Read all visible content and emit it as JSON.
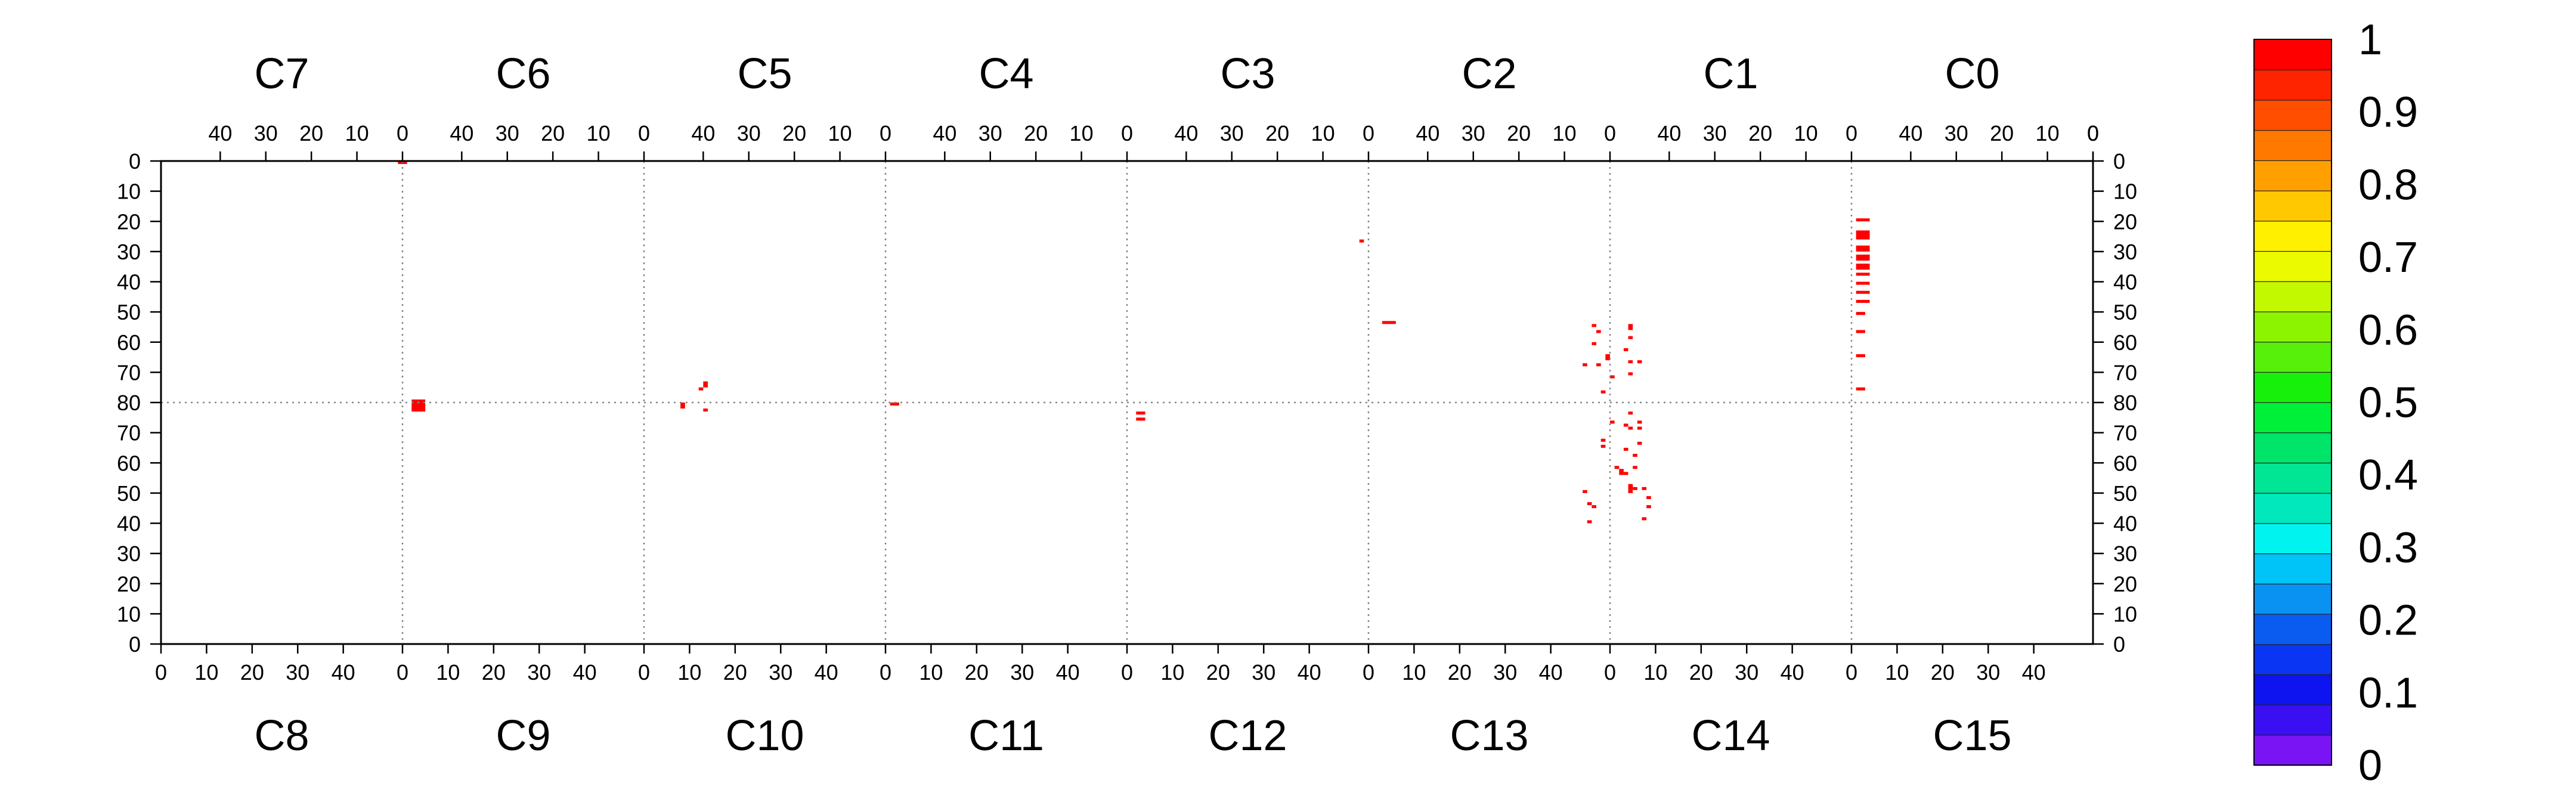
{
  "chart_data": {
    "type": "heatmap",
    "title": "",
    "chips_top": [
      "C7",
      "C6",
      "C5",
      "C4",
      "C3",
      "C2",
      "C1",
      "C0"
    ],
    "chips_bottom": [
      "C8",
      "C9",
      "C10",
      "C11",
      "C12",
      "C13",
      "C14",
      "C15"
    ],
    "top_x_tick_labels": [
      "40",
      "30",
      "20",
      "10",
      "0"
    ],
    "bottom_x_tick_labels": [
      "0",
      "10",
      "20",
      "30",
      "40"
    ],
    "y_tick_labels": [
      "0",
      "10",
      "20",
      "30",
      "40",
      "50",
      "60",
      "70",
      "80",
      "70",
      "60",
      "50",
      "40",
      "30",
      "20",
      "10",
      "0"
    ],
    "x_range_per_chip": [
      0,
      53
    ],
    "y_range": [
      0,
      160
    ],
    "grid": false,
    "colorbar": {
      "range": [
        0,
        1
      ],
      "tick_labels": [
        "0",
        "0.1",
        "0.2",
        "0.3",
        "0.4",
        "0.5",
        "0.6",
        "0.7",
        "0.8",
        "0.9",
        "1"
      ],
      "colors": [
        "#7a14f5",
        "#3a10f3",
        "#0d14f0",
        "#0a35f2",
        "#0a5cf0",
        "#0a92f2",
        "#00c3f8",
        "#00f3ee",
        "#00e8bc",
        "#00e695",
        "#00e46a",
        "#00f03a",
        "#16f00a",
        "#56f00a",
        "#8cf400",
        "#c2f800",
        "#ecfa00",
        "#fff000",
        "#ffc800",
        "#ffa000",
        "#ff7800",
        "#ff4e00",
        "#ff2400",
        "#ff0000"
      ]
    },
    "hit_color": "#ff0000",
    "hits": [
      {
        "col": 52,
        "row": 0,
        "w": 2,
        "h": 1
      },
      {
        "col": 55,
        "row": 79,
        "w": 3,
        "h": 4
      },
      {
        "col": 114,
        "row": 80,
        "w": 1,
        "h": 2
      },
      {
        "col": 118,
        "row": 75,
        "w": 1,
        "h": 1
      },
      {
        "col": 119,
        "row": 73,
        "w": 1,
        "h": 2
      },
      {
        "col": 119,
        "row": 82,
        "w": 1,
        "h": 1
      },
      {
        "col": 160,
        "row": 80,
        "w": 2,
        "h": 1
      },
      {
        "col": 214,
        "row": 83,
        "w": 2,
        "h": 1
      },
      {
        "col": 214,
        "row": 85,
        "w": 2,
        "h": 1
      },
      {
        "col": 263,
        "row": 26,
        "w": 1,
        "h": 1
      },
      {
        "col": 268,
        "row": 53,
        "w": 3,
        "h": 1
      },
      {
        "col": 314,
        "row": 54,
        "w": 1,
        "h": 1
      },
      {
        "col": 315,
        "row": 56,
        "w": 1,
        "h": 1
      },
      {
        "col": 314,
        "row": 60,
        "w": 1,
        "h": 1
      },
      {
        "col": 317,
        "row": 64,
        "w": 1,
        "h": 2
      },
      {
        "col": 312,
        "row": 67,
        "w": 1,
        "h": 1
      },
      {
        "col": 315,
        "row": 67,
        "w": 1,
        "h": 1
      },
      {
        "col": 318,
        "row": 71,
        "w": 1,
        "h": 1
      },
      {
        "col": 316,
        "row": 76,
        "w": 1,
        "h": 1
      },
      {
        "col": 322,
        "row": 54,
        "w": 1,
        "h": 2
      },
      {
        "col": 322,
        "row": 58,
        "w": 1,
        "h": 1
      },
      {
        "col": 321,
        "row": 62,
        "w": 1,
        "h": 1
      },
      {
        "col": 322,
        "row": 66,
        "w": 1,
        "h": 1
      },
      {
        "col": 324,
        "row": 66,
        "w": 1,
        "h": 1
      },
      {
        "col": 322,
        "row": 70,
        "w": 1,
        "h": 1
      },
      {
        "col": 322,
        "row": 83,
        "w": 1,
        "h": 1
      },
      {
        "col": 318,
        "row": 86,
        "w": 1,
        "h": 1
      },
      {
        "col": 316,
        "row": 92,
        "w": 1,
        "h": 1
      },
      {
        "col": 316,
        "row": 94,
        "w": 1,
        "h": 1
      },
      {
        "col": 321,
        "row": 87,
        "w": 1,
        "h": 1
      },
      {
        "col": 322,
        "row": 88,
        "w": 1,
        "h": 1
      },
      {
        "col": 324,
        "row": 86,
        "w": 1,
        "h": 1
      },
      {
        "col": 324,
        "row": 88,
        "w": 1,
        "h": 1
      },
      {
        "col": 321,
        "row": 95,
        "w": 1,
        "h": 1
      },
      {
        "col": 323,
        "row": 97,
        "w": 1,
        "h": 1
      },
      {
        "col": 324,
        "row": 93,
        "w": 1,
        "h": 1
      },
      {
        "col": 319,
        "row": 101,
        "w": 1,
        "h": 1
      },
      {
        "col": 320,
        "row": 102,
        "w": 1,
        "h": 2
      },
      {
        "col": 321,
        "row": 103,
        "w": 1,
        "h": 1
      },
      {
        "col": 323,
        "row": 101,
        "w": 1,
        "h": 1
      },
      {
        "col": 322,
        "row": 107,
        "w": 1,
        "h": 2
      },
      {
        "col": 322,
        "row": 109,
        "w": 1,
        "h": 1
      },
      {
        "col": 323,
        "row": 108,
        "w": 1,
        "h": 1
      },
      {
        "col": 325,
        "row": 108,
        "w": 1,
        "h": 1
      },
      {
        "col": 326,
        "row": 111,
        "w": 1,
        "h": 1
      },
      {
        "col": 326,
        "row": 114,
        "w": 1,
        "h": 1
      },
      {
        "col": 325,
        "row": 118,
        "w": 1,
        "h": 1
      },
      {
        "col": 312,
        "row": 109,
        "w": 1,
        "h": 1
      },
      {
        "col": 313,
        "row": 113,
        "w": 1,
        "h": 1
      },
      {
        "col": 314,
        "row": 114,
        "w": 1,
        "h": 1
      },
      {
        "col": 313,
        "row": 119,
        "w": 1,
        "h": 1
      },
      {
        "col": 372,
        "row": 19,
        "w": 3,
        "h": 1
      },
      {
        "col": 372,
        "row": 23,
        "w": 3,
        "h": 3
      },
      {
        "col": 372,
        "row": 28,
        "w": 3,
        "h": 2
      },
      {
        "col": 372,
        "row": 31,
        "w": 3,
        "h": 2
      },
      {
        "col": 372,
        "row": 34,
        "w": 3,
        "h": 2
      },
      {
        "col": 372,
        "row": 37,
        "w": 3,
        "h": 1
      },
      {
        "col": 372,
        "row": 40,
        "w": 3,
        "h": 1
      },
      {
        "col": 372,
        "row": 43,
        "w": 3,
        "h": 1
      },
      {
        "col": 372,
        "row": 46,
        "w": 3,
        "h": 1
      },
      {
        "col": 372,
        "row": 50,
        "w": 2,
        "h": 1
      },
      {
        "col": 372,
        "row": 56,
        "w": 2,
        "h": 1
      },
      {
        "col": 372,
        "row": 64,
        "w": 2,
        "h": 1
      },
      {
        "col": 372,
        "row": 75,
        "w": 2,
        "h": 1
      }
    ]
  }
}
